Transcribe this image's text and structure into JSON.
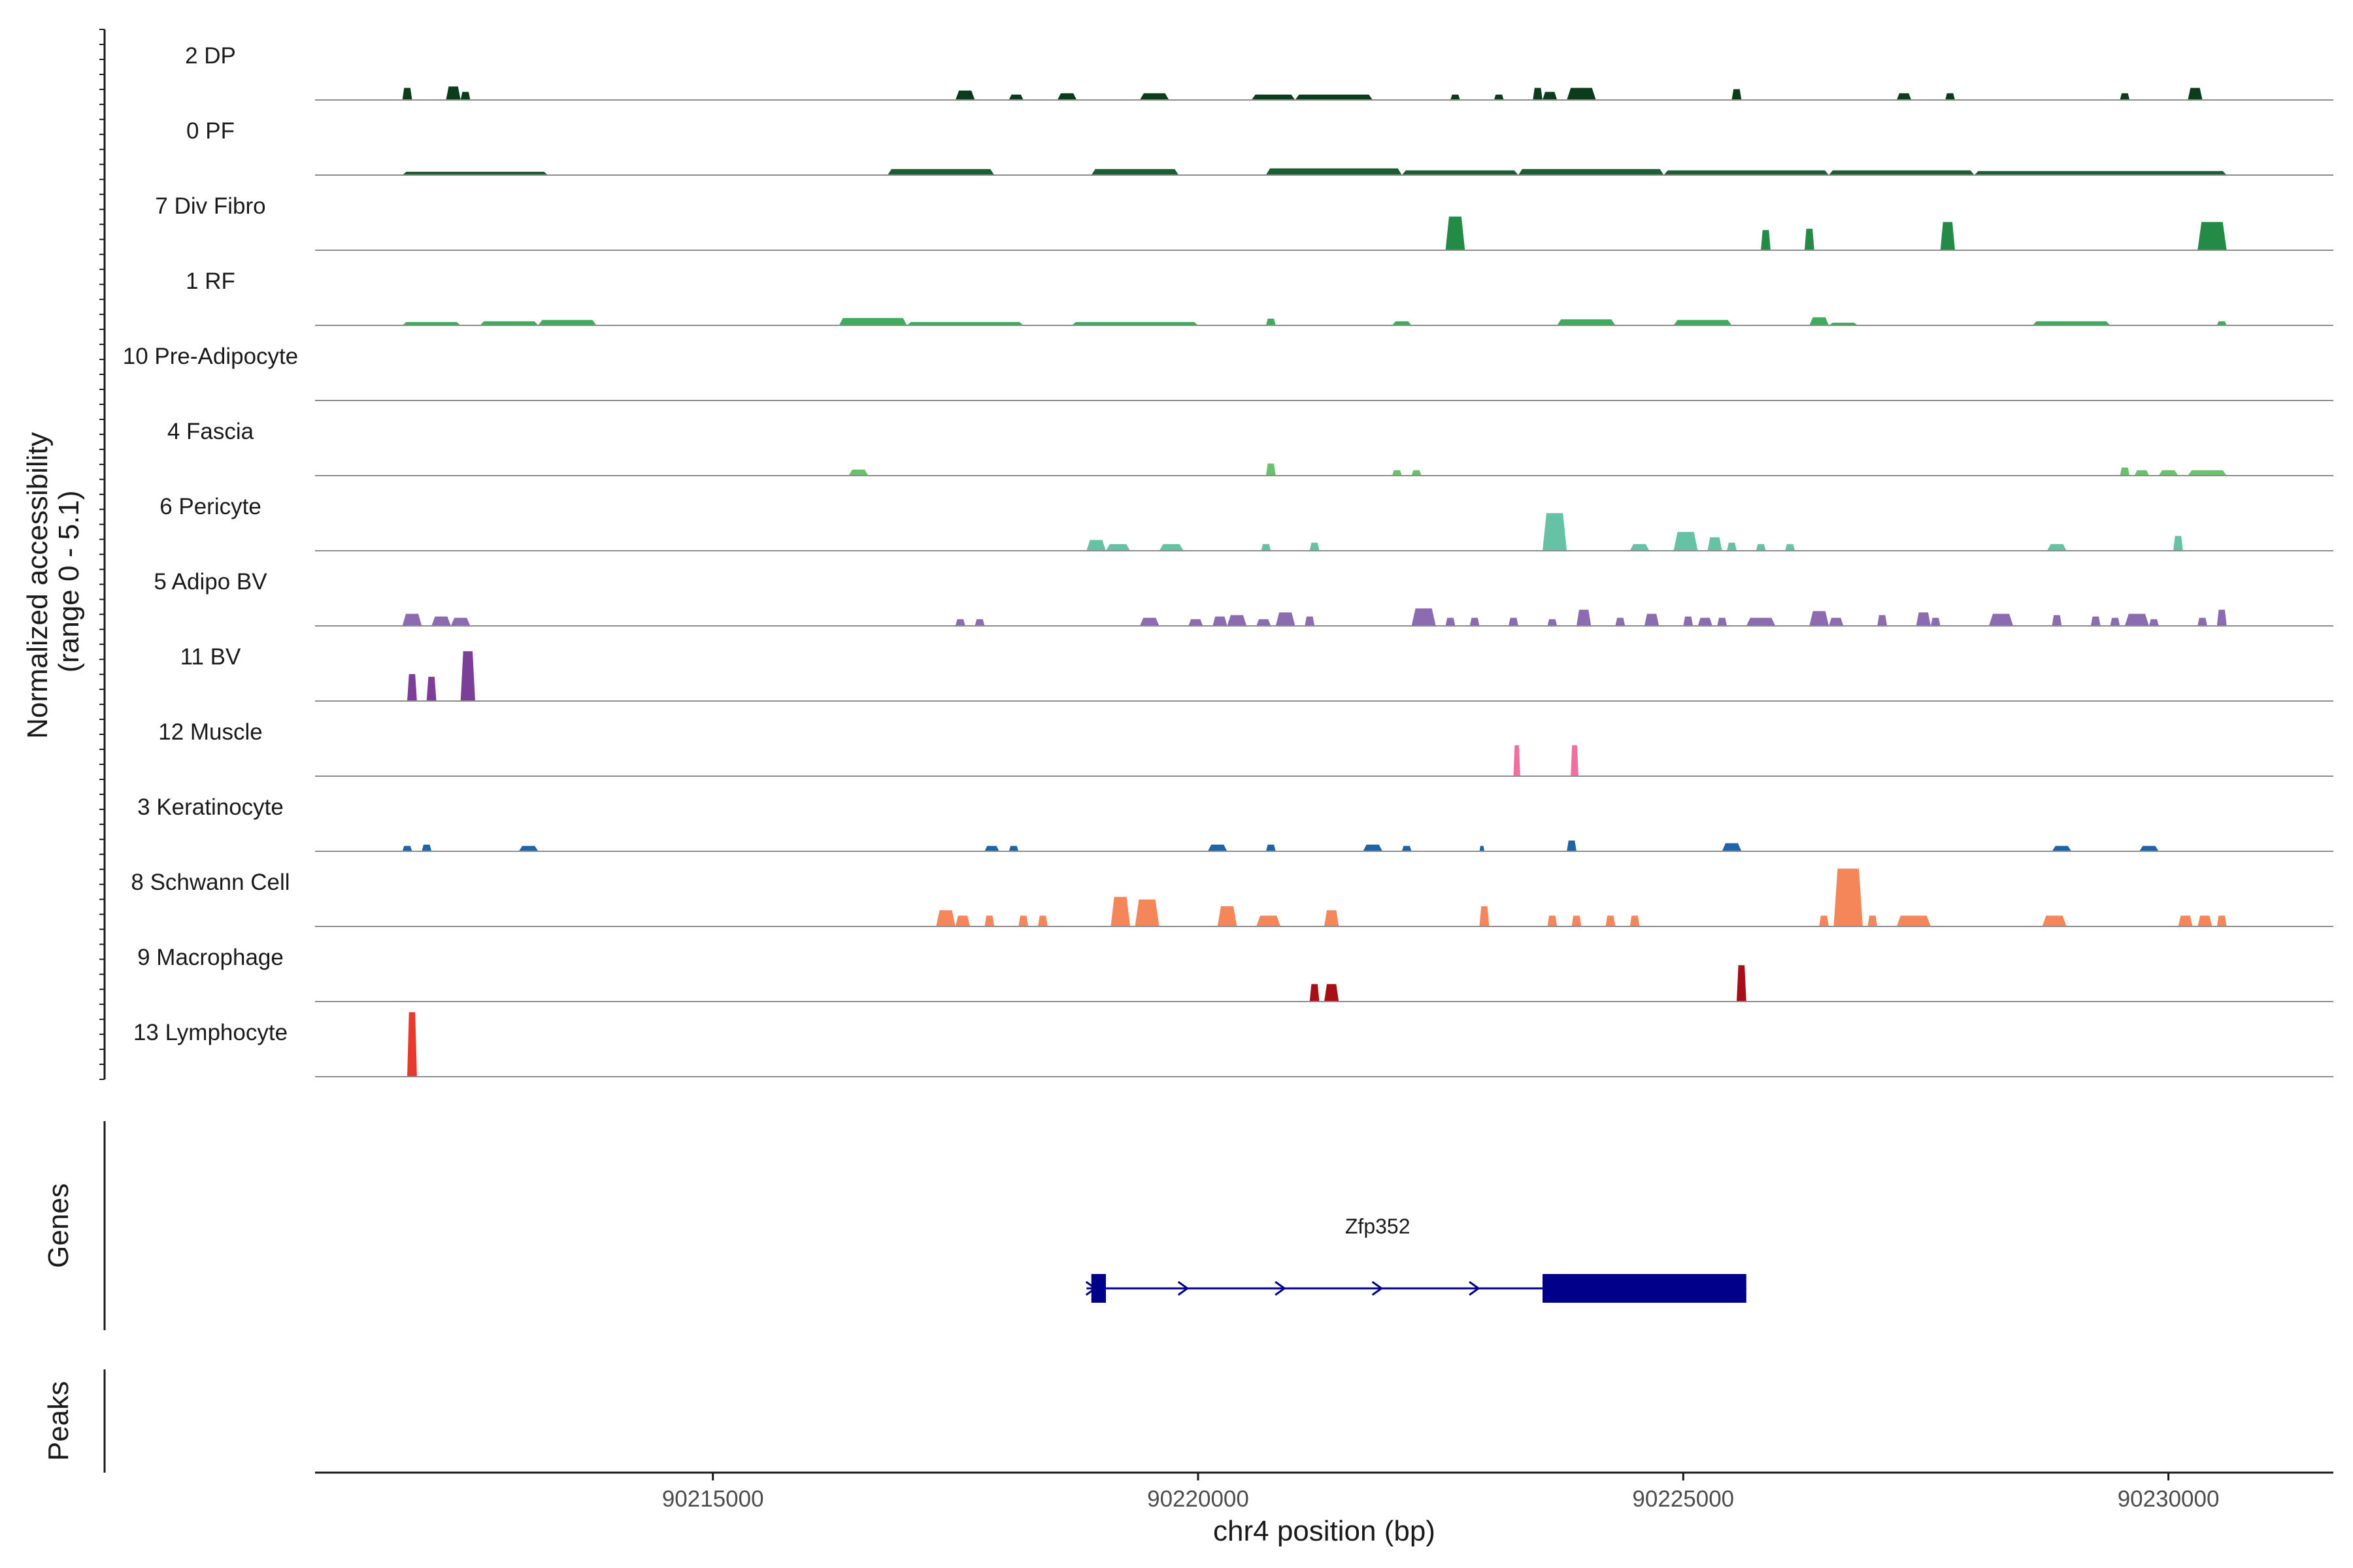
{
  "chart_data": {
    "type": "coverage",
    "ylabel_line1": "Normalized accessibility",
    "ylabel_line2": "(range 0 - 5.1)",
    "y_range": [
      0,
      5.1
    ],
    "xlabel": "chr4 position (bp)",
    "x_range": [
      90210900,
      90231700
    ],
    "x_ticks": [
      90215000,
      90220000,
      90225000,
      90230000
    ],
    "x_tick_labels": [
      "90215000",
      "90220000",
      "90225000",
      "90230000"
    ],
    "panel_labels": {
      "genes": "Genes",
      "peaks": "Peaks"
    },
    "tracks": [
      {
        "name": "2 DP",
        "color": "#0b3d1c",
        "peaks": [
          [
            90211800,
            90211900,
            0.9
          ],
          [
            90212250,
            90212400,
            1.0
          ],
          [
            90212400,
            90212500,
            0.6
          ],
          [
            90217500,
            90217700,
            0.7
          ],
          [
            90218050,
            90218200,
            0.4
          ],
          [
            90218550,
            90218750,
            0.5
          ],
          [
            90219400,
            90219700,
            0.5
          ],
          [
            90220550,
            90221000,
            0.4
          ],
          [
            90221000,
            90221800,
            0.4
          ],
          [
            90222600,
            90222700,
            0.4
          ],
          [
            90223050,
            90223150,
            0.4
          ],
          [
            90223450,
            90223550,
            0.9
          ],
          [
            90223550,
            90223700,
            0.6
          ],
          [
            90223800,
            90224100,
            0.9
          ],
          [
            90225500,
            90225600,
            0.8
          ],
          [
            90227200,
            90227350,
            0.5
          ],
          [
            90227700,
            90227800,
            0.5
          ],
          [
            90229500,
            90229600,
            0.5
          ],
          [
            90230200,
            90230350,
            0.9
          ]
        ]
      },
      {
        "name": "0 PF",
        "color": "#1b5e32",
        "peaks": [
          [
            90211800,
            90213300,
            0.25
          ],
          [
            90216800,
            90217900,
            0.45
          ],
          [
            90218900,
            90219800,
            0.45
          ],
          [
            90220700,
            90222100,
            0.5
          ],
          [
            90222100,
            90223300,
            0.35
          ],
          [
            90223300,
            90224800,
            0.45
          ],
          [
            90224800,
            90226500,
            0.35
          ],
          [
            90226500,
            90228000,
            0.35
          ],
          [
            90228000,
            90230600,
            0.3
          ]
        ]
      },
      {
        "name": "7 Div Fibro",
        "color": "#238b45",
        "peaks": [
          [
            90222550,
            90222750,
            2.5
          ],
          [
            90225800,
            90225900,
            1.5
          ],
          [
            90226250,
            90226350,
            1.6
          ],
          [
            90227650,
            90227800,
            2.1
          ],
          [
            90230300,
            90230600,
            2.1
          ]
        ]
      },
      {
        "name": "1 RF",
        "color": "#41ab5d",
        "peaks": [
          [
            90211800,
            90212400,
            0.25
          ],
          [
            90212600,
            90213200,
            0.3
          ],
          [
            90213200,
            90213800,
            0.4
          ],
          [
            90216300,
            90217000,
            0.55
          ],
          [
            90217000,
            90218200,
            0.25
          ],
          [
            90218700,
            90220000,
            0.25
          ],
          [
            90220700,
            90220800,
            0.5
          ],
          [
            90222000,
            90222200,
            0.3
          ],
          [
            90223700,
            90224300,
            0.45
          ],
          [
            90224900,
            90225500,
            0.4
          ],
          [
            90226300,
            90226500,
            0.6
          ],
          [
            90226500,
            90226800,
            0.2
          ],
          [
            90228600,
            90229400,
            0.3
          ],
          [
            90230500,
            90230600,
            0.3
          ]
        ]
      },
      {
        "name": "10 Pre-Adipocyte",
        "color": "#74c476",
        "peaks": []
      },
      {
        "name": "4 Fascia",
        "color": "#6cbf6c",
        "peaks": [
          [
            90216400,
            90216600,
            0.45
          ],
          [
            90220700,
            90220800,
            0.9
          ],
          [
            90222000,
            90222100,
            0.4
          ],
          [
            90222200,
            90222300,
            0.4
          ],
          [
            90229500,
            90229600,
            0.6
          ],
          [
            90229650,
            90229800,
            0.4
          ],
          [
            90229900,
            90230100,
            0.4
          ],
          [
            90230200,
            90230600,
            0.4
          ]
        ]
      },
      {
        "name": "6 Pericyte",
        "color": "#66c2a4",
        "peaks": [
          [
            90218850,
            90219050,
            0.8
          ],
          [
            90219050,
            90219300,
            0.5
          ],
          [
            90219600,
            90219850,
            0.5
          ],
          [
            90220650,
            90220750,
            0.5
          ],
          [
            90221150,
            90221250,
            0.6
          ],
          [
            90223550,
            90223800,
            2.8
          ],
          [
            90224450,
            90224650,
            0.5
          ],
          [
            90224900,
            90225150,
            1.4
          ],
          [
            90225250,
            90225400,
            1.0
          ],
          [
            90225450,
            90225550,
            0.6
          ],
          [
            90225750,
            90225850,
            0.5
          ],
          [
            90226050,
            90226150,
            0.5
          ],
          [
            90228750,
            90228950,
            0.5
          ],
          [
            90230050,
            90230150,
            1.1
          ]
        ]
      },
      {
        "name": "5 Adipo BV",
        "color": "#8c6bb1",
        "peaks": [
          [
            90211800,
            90212000,
            0.9
          ],
          [
            90212100,
            90212300,
            0.7
          ],
          [
            90212300,
            90212500,
            0.6
          ],
          [
            90217500,
            90217600,
            0.5
          ],
          [
            90217700,
            90217800,
            0.5
          ],
          [
            90219400,
            90219600,
            0.6
          ],
          [
            90219900,
            90220050,
            0.5
          ],
          [
            90220150,
            90220300,
            0.7
          ],
          [
            90220300,
            90220500,
            0.8
          ],
          [
            90220600,
            90220750,
            0.5
          ],
          [
            90220800,
            90221000,
            1.0
          ],
          [
            90221100,
            90221200,
            0.7
          ],
          [
            90222200,
            90222450,
            1.3
          ],
          [
            90222550,
            90222650,
            0.6
          ],
          [
            90222800,
            90222900,
            0.6
          ],
          [
            90223200,
            90223300,
            0.6
          ],
          [
            90223600,
            90223700,
            0.5
          ],
          [
            90223900,
            90224050,
            1.2
          ],
          [
            90224300,
            90224400,
            0.6
          ],
          [
            90224600,
            90224750,
            0.9
          ],
          [
            90225000,
            90225100,
            0.7
          ],
          [
            90225150,
            90225300,
            0.6
          ],
          [
            90225350,
            90225450,
            0.6
          ],
          [
            90225650,
            90225950,
            0.6
          ],
          [
            90226300,
            90226500,
            1.1
          ],
          [
            90226500,
            90226650,
            0.6
          ],
          [
            90227000,
            90227100,
            0.8
          ],
          [
            90227400,
            90227550,
            1.0
          ],
          [
            90227550,
            90227650,
            0.6
          ],
          [
            90228150,
            90228400,
            0.9
          ],
          [
            90228800,
            90228900,
            0.8
          ],
          [
            90229200,
            90229300,
            0.7
          ],
          [
            90229400,
            90229500,
            0.6
          ],
          [
            90229550,
            90229800,
            0.9
          ],
          [
            90229800,
            90229900,
            0.5
          ],
          [
            90230300,
            90230400,
            0.6
          ],
          [
            90230500,
            90230600,
            1.2
          ]
        ]
      },
      {
        "name": "11 BV",
        "color": "#7b3f99",
        "peaks": [
          [
            90211850,
            90211950,
            2.0
          ],
          [
            90212050,
            90212150,
            1.8
          ],
          [
            90212400,
            90212550,
            3.7
          ]
        ]
      },
      {
        "name": "12 Muscle",
        "color": "#f06fa0",
        "peaks": [
          [
            90223250,
            90223320,
            2.3
          ],
          [
            90223840,
            90223920,
            2.3
          ]
        ]
      },
      {
        "name": "3 Keratinocyte",
        "color": "#2064a8",
        "peaks": [
          [
            90211800,
            90211900,
            0.4
          ],
          [
            90212000,
            90212100,
            0.5
          ],
          [
            90213000,
            90213200,
            0.4
          ],
          [
            90217800,
            90217950,
            0.4
          ],
          [
            90218050,
            90218150,
            0.4
          ],
          [
            90220100,
            90220300,
            0.5
          ],
          [
            90220700,
            90220800,
            0.5
          ],
          [
            90221700,
            90221900,
            0.5
          ],
          [
            90222100,
            90222200,
            0.4
          ],
          [
            90222900,
            90222950,
            0.4
          ],
          [
            90223800,
            90223900,
            0.8
          ],
          [
            90225400,
            90225600,
            0.6
          ],
          [
            90228800,
            90229000,
            0.4
          ],
          [
            90229700,
            90229900,
            0.4
          ]
        ]
      },
      {
        "name": "8 Schwann Cell",
        "color": "#f4865a",
        "peaks": [
          [
            90217300,
            90217500,
            1.2
          ],
          [
            90217500,
            90217650,
            0.8
          ],
          [
            90217800,
            90217900,
            0.8
          ],
          [
            90218150,
            90218250,
            0.8
          ],
          [
            90218350,
            90218450,
            0.8
          ],
          [
            90219100,
            90219300,
            2.2
          ],
          [
            90219350,
            90219600,
            2.0
          ],
          [
            90220200,
            90220400,
            1.5
          ],
          [
            90220600,
            90220850,
            0.8
          ],
          [
            90221300,
            90221450,
            1.2
          ],
          [
            90222900,
            90223000,
            1.5
          ],
          [
            90223600,
            90223700,
            0.8
          ],
          [
            90223850,
            90223950,
            0.8
          ],
          [
            90224200,
            90224300,
            0.8
          ],
          [
            90224450,
            90224550,
            0.8
          ],
          [
            90226400,
            90226500,
            0.8
          ],
          [
            90226550,
            90226850,
            4.3
          ],
          [
            90226900,
            90227000,
            0.8
          ],
          [
            90227200,
            90227550,
            0.8
          ],
          [
            90228700,
            90228950,
            0.8
          ],
          [
            90230100,
            90230250,
            0.8
          ],
          [
            90230300,
            90230450,
            0.8
          ],
          [
            90230500,
            90230600,
            0.8
          ]
        ]
      },
      {
        "name": "9 Macrophage",
        "color": "#a50f15",
        "peaks": [
          [
            90221150,
            90221250,
            1.3
          ],
          [
            90221300,
            90221450,
            1.3
          ],
          [
            90225550,
            90225650,
            2.7
          ]
        ]
      },
      {
        "name": "13 Lymphocyte",
        "color": "#e8392c",
        "peaks": [
          [
            90211850,
            90211950,
            4.8
          ]
        ]
      }
    ],
    "gene": {
      "name": "Zfp352",
      "color": "#00008b",
      "start": 90218850,
      "end": 90225650,
      "strand": "+",
      "exons": [
        [
          90218900,
          90219050
        ],
        [
          90223550,
          90225650
        ]
      ],
      "arrow_positions": [
        90218900,
        90219850,
        90220850,
        90221850,
        90222850
      ]
    },
    "peaks_track": []
  }
}
